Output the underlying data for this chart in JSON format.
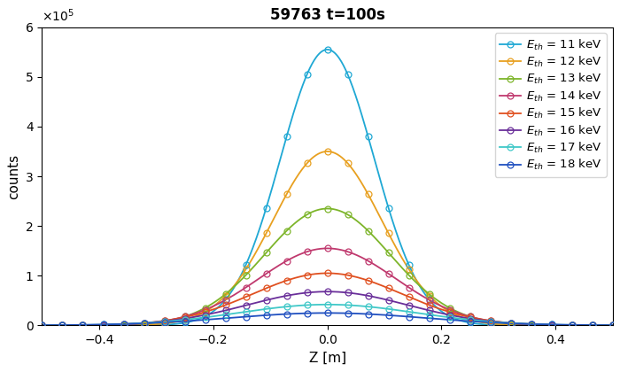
{
  "title": "59763 t=100s",
  "xlabel": "Z [m]",
  "ylabel": "counts",
  "xlim": [
    -0.5,
    0.5
  ],
  "ylim": [
    0,
    600000.0
  ],
  "curves": [
    {
      "label": "E$_{th}$ = 11 keV",
      "color": "#1fa8d4",
      "amplitude": 555000,
      "sigma": 0.082,
      "mu": 0.0
    },
    {
      "label": "E$_{th}$ = 12 keV",
      "color": "#e8a020",
      "amplitude": 350000,
      "sigma": 0.095,
      "mu": 0.0
    },
    {
      "label": "E$_{th}$ = 13 keV",
      "color": "#7db52a",
      "amplitude": 235000,
      "sigma": 0.11,
      "mu": 0.0
    },
    {
      "label": "E$_{th}$ = 14 keV",
      "color": "#c0396e",
      "amplitude": 155000,
      "sigma": 0.12,
      "mu": 0.0
    },
    {
      "label": "E$_{th}$ = 15 keV",
      "color": "#e05020",
      "amplitude": 105000,
      "sigma": 0.13,
      "mu": 0.0
    },
    {
      "label": "E$_{th}$ = 16 keV",
      "color": "#6a2f9a",
      "amplitude": 68000,
      "sigma": 0.14,
      "mu": 0.0
    },
    {
      "label": "E$_{th}$ = 17 keV",
      "color": "#40c8c8",
      "amplitude": 42000,
      "sigma": 0.155,
      "mu": 0.0
    },
    {
      "label": "E$_{th}$ = 18 keV",
      "color": "#2050c0",
      "amplitude": 25000,
      "sigma": 0.17,
      "mu": 0.0
    }
  ],
  "n_smooth": 800,
  "n_markers": 29,
  "marker_size": 5,
  "line_width": 1.3,
  "background_color": "#ffffff",
  "title_fontsize": 12,
  "axis_fontsize": 11,
  "legend_fontsize": 9.5,
  "tick_fontsize": 10
}
